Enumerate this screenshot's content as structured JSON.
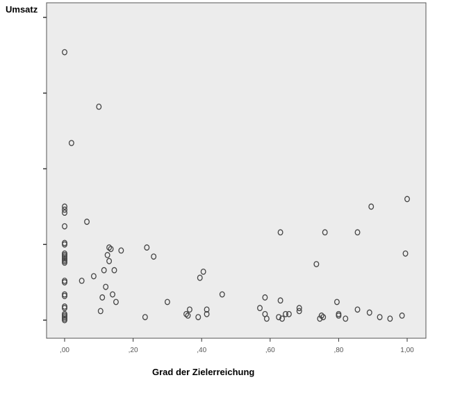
{
  "chart_data": {
    "type": "scatter",
    "title": "",
    "xlabel": "Grad der Zielerreichung",
    "ylabel": "Umsatz",
    "xlim": [
      -0.05,
      1.05
    ],
    "ylim": [
      -0.1,
      2.0
    ],
    "x_ticks": [
      0.0,
      0.2,
      0.4,
      0.6,
      0.8,
      1.0
    ],
    "x_tick_labels": [
      ",00",
      ",20",
      ",40",
      ",60",
      ",80",
      "1,00"
    ],
    "y_ticks": [
      0.0,
      0.5,
      1.0,
      1.5,
      2.0
    ],
    "y_tick_labels": [
      "",
      "",
      "",
      "",
      ""
    ],
    "grid": false,
    "legend": "none",
    "colors": {
      "plot_bg": "#ececec",
      "marker": "#444444",
      "axis": "#555555"
    },
    "points": [
      [
        0.0,
        1.77
      ],
      [
        0.0,
        0.75
      ],
      [
        0.0,
        0.73
      ],
      [
        0.0,
        0.71
      ],
      [
        0.0,
        0.62
      ],
      [
        0.0,
        0.51
      ],
      [
        0.0,
        0.5
      ],
      [
        0.0,
        0.44
      ],
      [
        0.0,
        0.43
      ],
      [
        0.0,
        0.42
      ],
      [
        0.0,
        0.41
      ],
      [
        0.0,
        0.4
      ],
      [
        0.0,
        0.39
      ],
      [
        0.0,
        0.38
      ],
      [
        0.0,
        0.26
      ],
      [
        0.0,
        0.25
      ],
      [
        0.0,
        0.17
      ],
      [
        0.0,
        0.16
      ],
      [
        0.0,
        0.09
      ],
      [
        0.0,
        0.08
      ],
      [
        0.0,
        0.04
      ],
      [
        0.0,
        0.03
      ],
      [
        0.0,
        0.02
      ],
      [
        0.0,
        0.01
      ],
      [
        0.0,
        0.0
      ],
      [
        0.02,
        1.17
      ],
      [
        0.05,
        0.26
      ],
      [
        0.065,
        0.65
      ],
      [
        0.085,
        0.29
      ],
      [
        0.1,
        1.41
      ],
      [
        0.105,
        0.06
      ],
      [
        0.11,
        0.15
      ],
      [
        0.115,
        0.33
      ],
      [
        0.12,
        0.22
      ],
      [
        0.125,
        0.43
      ],
      [
        0.13,
        0.48
      ],
      [
        0.13,
        0.39
      ],
      [
        0.135,
        0.47
      ],
      [
        0.14,
        0.17
      ],
      [
        0.145,
        0.33
      ],
      [
        0.15,
        0.12
      ],
      [
        0.165,
        0.46
      ],
      [
        0.235,
        0.02
      ],
      [
        0.24,
        0.48
      ],
      [
        0.26,
        0.42
      ],
      [
        0.3,
        0.12
      ],
      [
        0.355,
        0.04
      ],
      [
        0.36,
        0.03
      ],
      [
        0.365,
        0.07
      ],
      [
        0.39,
        0.02
      ],
      [
        0.395,
        0.28
      ],
      [
        0.405,
        0.32
      ],
      [
        0.415,
        0.04
      ],
      [
        0.415,
        0.07
      ],
      [
        0.46,
        0.17
      ],
      [
        0.57,
        0.08
      ],
      [
        0.585,
        0.15
      ],
      [
        0.585,
        0.04
      ],
      [
        0.59,
        0.01
      ],
      [
        0.625,
        0.02
      ],
      [
        0.63,
        0.58
      ],
      [
        0.63,
        0.13
      ],
      [
        0.635,
        0.01
      ],
      [
        0.645,
        0.04
      ],
      [
        0.655,
        0.04
      ],
      [
        0.685,
        0.08
      ],
      [
        0.685,
        0.06
      ],
      [
        0.735,
        0.37
      ],
      [
        0.745,
        0.01
      ],
      [
        0.75,
        0.03
      ],
      [
        0.755,
        0.02
      ],
      [
        0.76,
        0.58
      ],
      [
        0.795,
        0.12
      ],
      [
        0.8,
        0.04
      ],
      [
        0.8,
        0.03
      ],
      [
        0.82,
        0.01
      ],
      [
        0.855,
        0.58
      ],
      [
        0.855,
        0.07
      ],
      [
        0.89,
        0.05
      ],
      [
        0.895,
        0.75
      ],
      [
        0.92,
        0.02
      ],
      [
        0.95,
        0.01
      ],
      [
        0.985,
        0.03
      ],
      [
        0.995,
        0.44
      ],
      [
        1.0,
        0.8
      ]
    ]
  }
}
